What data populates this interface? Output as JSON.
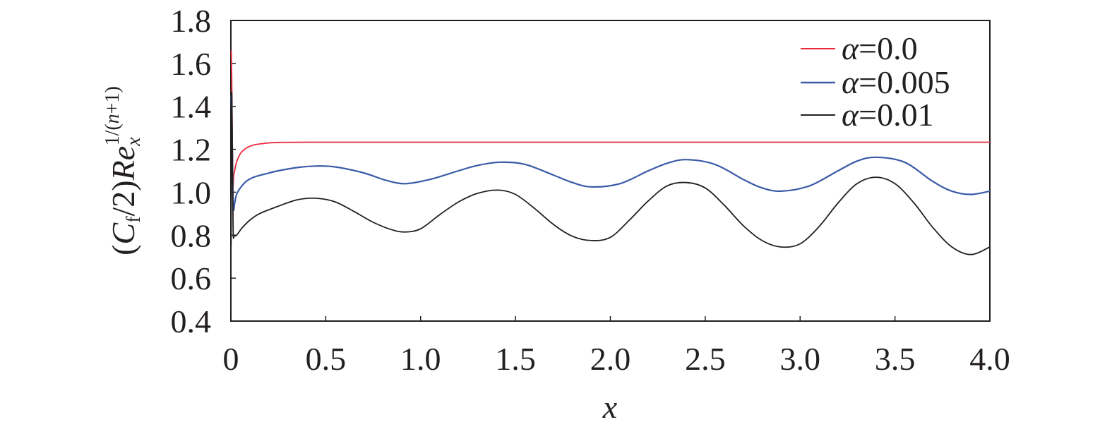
{
  "chart_data": {
    "type": "line",
    "xlabel": "x",
    "ylabel": {
      "open": "(",
      "c": "C",
      "c_sub": "f",
      "mid": "/2)",
      "re": "Re",
      "re_sub": "x",
      "exp_prefix": "1/(",
      "exp_n": "n",
      "exp_suffix": "+1)"
    },
    "xlim": [
      0,
      4.0
    ],
    "ylim": [
      0.4,
      1.8
    ],
    "x_ticks": [
      0,
      0.5,
      1.0,
      1.5,
      2.0,
      2.5,
      3.0,
      3.5,
      4.0
    ],
    "x_tick_labels": [
      "0",
      "0.5",
      "1.0",
      "1.5",
      "2.0",
      "2.5",
      "3.0",
      "3.5",
      "4.0"
    ],
    "y_ticks": [
      0.4,
      0.6,
      0.8,
      1.0,
      1.2,
      1.4,
      1.6,
      1.8
    ],
    "y_tick_labels": [
      "0.4",
      "0.6",
      "0.8",
      "1.0",
      "1.2",
      "1.4",
      "1.6",
      "1.8"
    ],
    "grid": false,
    "legend_position": "top-right",
    "series": [
      {
        "name": "α=0.0",
        "sym": "α",
        "val": "=0.0",
        "color": "#e8283c",
        "x": [
          0.002,
          0.005,
          0.01,
          0.015,
          0.02,
          0.03,
          0.05,
          0.08,
          0.12,
          0.18,
          0.25,
          0.4,
          0.6,
          1.0,
          1.5,
          2.0,
          2.5,
          3.0,
          3.5,
          4.0
        ],
        "y": [
          1.66,
          1.5,
          1.05,
          1.08,
          1.1,
          1.14,
          1.18,
          1.205,
          1.22,
          1.228,
          1.232,
          1.233,
          1.233,
          1.233,
          1.233,
          1.233,
          1.233,
          1.233,
          1.233,
          1.233
        ]
      },
      {
        "name": "α=0.005",
        "sym": "α",
        "val": "=0.005",
        "color": "#3a5aa8",
        "x": [
          0.002,
          0.006,
          0.012,
          0.02,
          0.03,
          0.05,
          0.08,
          0.12,
          0.18,
          0.25,
          0.35,
          0.45,
          0.55,
          0.7,
          0.82,
          0.92,
          1.05,
          1.2,
          1.3,
          1.42,
          1.55,
          1.7,
          1.8,
          1.9,
          2.05,
          2.2,
          2.3,
          2.4,
          2.55,
          2.7,
          2.8,
          2.9,
          3.05,
          3.2,
          3.3,
          3.4,
          3.55,
          3.7,
          3.8,
          3.9,
          4.0
        ],
        "y": [
          1.45,
          1.3,
          0.94,
          0.95,
          0.99,
          1.02,
          1.05,
          1.07,
          1.085,
          1.1,
          1.115,
          1.122,
          1.118,
          1.09,
          1.055,
          1.04,
          1.06,
          1.1,
          1.125,
          1.14,
          1.13,
          1.08,
          1.045,
          1.025,
          1.04,
          1.1,
          1.135,
          1.152,
          1.13,
          1.06,
          1.02,
          1.005,
          1.03,
          1.1,
          1.145,
          1.163,
          1.14,
          1.05,
          1.005,
          0.99,
          1.005
        ]
      },
      {
        "name": "α=0.01",
        "sym": "α",
        "val": "=0.01",
        "color": "#231f20",
        "x": [
          0.001,
          0.004,
          0.008,
          0.012,
          0.018,
          0.03,
          0.06,
          0.1,
          0.15,
          0.25,
          0.35,
          0.45,
          0.55,
          0.65,
          0.75,
          0.85,
          0.92,
          1.0,
          1.1,
          1.2,
          1.3,
          1.41,
          1.5,
          1.6,
          1.7,
          1.8,
          1.9,
          2.0,
          2.1,
          2.2,
          2.3,
          2.4,
          2.5,
          2.6,
          2.7,
          2.8,
          2.9,
          3.0,
          3.1,
          3.2,
          3.3,
          3.4,
          3.5,
          3.6,
          3.7,
          3.8,
          3.9,
          4.0
        ],
        "y": [
          0.75,
          1.45,
          1.2,
          0.82,
          0.8,
          0.8,
          0.835,
          0.87,
          0.9,
          0.935,
          0.965,
          0.972,
          0.955,
          0.91,
          0.86,
          0.825,
          0.815,
          0.83,
          0.895,
          0.955,
          0.995,
          1.01,
          0.99,
          0.925,
          0.85,
          0.795,
          0.775,
          0.79,
          0.87,
          0.96,
          1.03,
          1.045,
          1.02,
          0.94,
          0.845,
          0.775,
          0.745,
          0.76,
          0.84,
          0.95,
          1.04,
          1.07,
          1.04,
          0.95,
          0.835,
          0.745,
          0.71,
          0.745
        ]
      }
    ]
  }
}
